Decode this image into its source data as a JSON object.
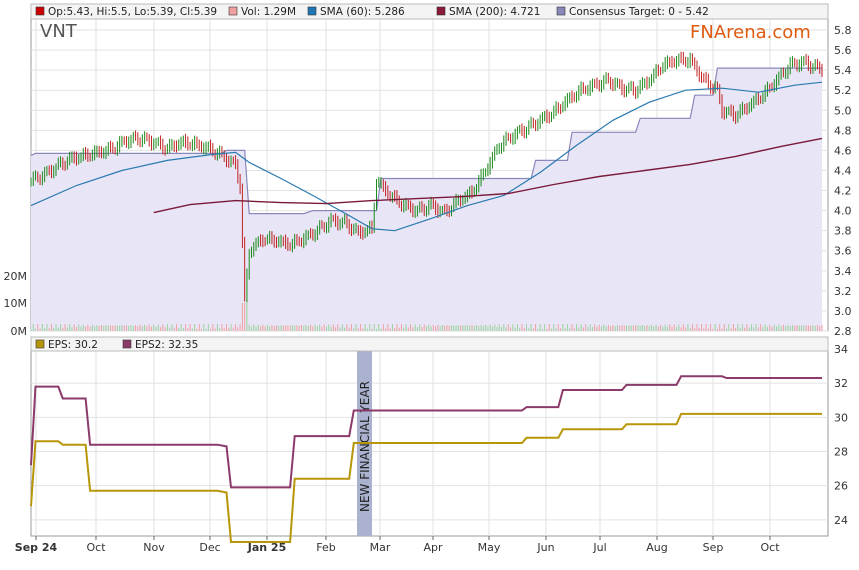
{
  "ticker": "VNT",
  "brand": "FNArena.com",
  "price_legend": [
    {
      "label": "Op:5.43, Hi:5.5, Lo:5.39, Cl:5.39",
      "color": "#cc0000"
    },
    {
      "label": "Vol: 1.29M",
      "color": "#f0a0a0"
    },
    {
      "label": "SMA (60): 5.286",
      "color": "#1f77b4"
    },
    {
      "label": "SMA (200): 4.721",
      "color": "#8b1a3a"
    },
    {
      "label": "Consensus Target: 0 - 5.42",
      "color": "#8888bb"
    }
  ],
  "eps_legend": [
    {
      "label": "EPS: 30.2",
      "color": "#b8960a"
    },
    {
      "label": "EPS2: 32.35",
      "color": "#8b3a6b"
    }
  ],
  "annotation": "NEW FINANCIAL YEAR",
  "x_ticks": [
    "Sep 24",
    "Oct",
    "Nov",
    "Dec",
    "Jan 25",
    "Feb",
    "Mar",
    "Apr",
    "May",
    "Jun",
    "Jul",
    "Aug",
    "Sep",
    "Oct"
  ],
  "chart_data": [
    {
      "type": "line",
      "title": "VNT",
      "ylim": [
        2.8,
        5.8
      ],
      "y_ticks": [
        "2.8",
        "3.0",
        "3.2",
        "3.4",
        "3.6",
        "3.8",
        "4.0",
        "4.2",
        "4.4",
        "4.6",
        "4.8",
        "5.0",
        "5.2",
        "5.4",
        "5.6",
        "5.8"
      ],
      "volume_ticks": [
        "0M",
        "10M",
        "20M"
      ],
      "series": [
        {
          "name": "Close",
          "points": [
            [
              0,
              4.3
            ],
            [
              3,
              4.36
            ],
            [
              6,
              4.45
            ],
            [
              9,
              4.52
            ],
            [
              12,
              4.55
            ],
            [
              15,
              4.58
            ],
            [
              18,
              4.62
            ],
            [
              21,
              4.7
            ],
            [
              24,
              4.72
            ],
            [
              27,
              4.68
            ],
            [
              30,
              4.62
            ],
            [
              33,
              4.68
            ],
            [
              36,
              4.66
            ],
            [
              39,
              4.62
            ],
            [
              42,
              4.55
            ],
            [
              45,
              4.45
            ],
            [
              46,
              4.25
            ],
            [
              47,
              3.1
            ],
            [
              48,
              3.6
            ],
            [
              51,
              3.72
            ],
            [
              54,
              3.7
            ],
            [
              57,
              3.66
            ],
            [
              60,
              3.72
            ],
            [
              63,
              3.8
            ],
            [
              66,
              3.9
            ],
            [
              69,
              3.88
            ],
            [
              72,
              3.78
            ],
            [
              75,
              3.82
            ],
            [
              76,
              4.3
            ],
            [
              79,
              4.15
            ],
            [
              82,
              4.05
            ],
            [
              85,
              4.0
            ],
            [
              88,
              4.05
            ],
            [
              91,
              3.98
            ],
            [
              94,
              4.1
            ],
            [
              97,
              4.18
            ],
            [
              100,
              4.4
            ],
            [
              103,
              4.65
            ],
            [
              106,
              4.75
            ],
            [
              109,
              4.82
            ],
            [
              112,
              4.9
            ],
            [
              115,
              4.98
            ],
            [
              118,
              5.1
            ],
            [
              121,
              5.2
            ],
            [
              124,
              5.25
            ],
            [
              127,
              5.3
            ],
            [
              130,
              5.22
            ],
            [
              133,
              5.2
            ],
            [
              136,
              5.3
            ],
            [
              139,
              5.45
            ],
            [
              142,
              5.5
            ],
            [
              145,
              5.5
            ],
            [
              148,
              5.3
            ],
            [
              151,
              5.2
            ],
            [
              152,
              5.0
            ],
            [
              155,
              4.95
            ],
            [
              158,
              5.05
            ],
            [
              161,
              5.15
            ],
            [
              164,
              5.3
            ],
            [
              167,
              5.45
            ],
            [
              170,
              5.48
            ],
            [
              173,
              5.42
            ]
          ]
        },
        {
          "name": "SMA (60)",
          "points": [
            [
              0,
              4.05
            ],
            [
              10,
              4.25
            ],
            [
              20,
              4.4
            ],
            [
              30,
              4.5
            ],
            [
              40,
              4.56
            ],
            [
              45,
              4.58
            ],
            [
              48,
              4.48
            ],
            [
              55,
              4.32
            ],
            [
              62,
              4.15
            ],
            [
              70,
              3.95
            ],
            [
              75,
              3.82
            ],
            [
              80,
              3.8
            ],
            [
              88,
              3.92
            ],
            [
              96,
              4.05
            ],
            [
              104,
              4.15
            ],
            [
              112,
              4.38
            ],
            [
              120,
              4.65
            ],
            [
              128,
              4.9
            ],
            [
              136,
              5.08
            ],
            [
              144,
              5.2
            ],
            [
              152,
              5.22
            ],
            [
              160,
              5.18
            ],
            [
              168,
              5.25
            ],
            [
              174,
              5.28
            ]
          ]
        },
        {
          "name": "SMA (200)",
          "points": [
            [
              27,
              3.98
            ],
            [
              35,
              4.06
            ],
            [
              45,
              4.1
            ],
            [
              55,
              4.08
            ],
            [
              65,
              4.07
            ],
            [
              75,
              4.1
            ],
            [
              85,
              4.12
            ],
            [
              95,
              4.14
            ],
            [
              105,
              4.17
            ],
            [
              115,
              4.26
            ],
            [
              125,
              4.34
            ],
            [
              135,
              4.4
            ],
            [
              145,
              4.46
            ],
            [
              155,
              4.54
            ],
            [
              165,
              4.64
            ],
            [
              174,
              4.72
            ]
          ]
        },
        {
          "name": "Consensus Target",
          "points": [
            [
              0,
              4.55
            ],
            [
              1,
              4.57
            ],
            [
              42,
              4.57
            ],
            [
              43,
              4.6
            ],
            [
              47,
              4.6
            ],
            [
              48,
              3.97
            ],
            [
              60,
              3.97
            ],
            [
              62,
              4.0
            ],
            [
              76,
              4.0
            ],
            [
              77,
              4.32
            ],
            [
              110,
              4.32
            ],
            [
              111,
              4.5
            ],
            [
              118,
              4.5
            ],
            [
              119,
              4.78
            ],
            [
              133,
              4.78
            ],
            [
              134,
              4.92
            ],
            [
              145,
              4.92
            ],
            [
              146,
              5.15
            ],
            [
              150,
              5.15
            ],
            [
              151,
              5.42
            ],
            [
              174,
              5.42
            ]
          ]
        }
      ]
    },
    {
      "type": "line",
      "ylim": [
        22,
        34
      ],
      "y_ticks": [
        "24",
        "26",
        "28",
        "30",
        "32",
        "34"
      ],
      "series": [
        {
          "name": "EPS",
          "points": [
            [
              0,
              24.8
            ],
            [
              1,
              28.6
            ],
            [
              6,
              28.6
            ],
            [
              7,
              28.4
            ],
            [
              12,
              28.4
            ],
            [
              13,
              25.7
            ],
            [
              41,
              25.7
            ],
            [
              43,
              25.6
            ],
            [
              44,
              22.7
            ],
            [
              57,
              22.7
            ],
            [
              58,
              26.4
            ],
            [
              70,
              26.4
            ],
            [
              71,
              28.5
            ],
            [
              108,
              28.5
            ],
            [
              109,
              28.8
            ],
            [
              116,
              28.8
            ],
            [
              117,
              29.3
            ],
            [
              130,
              29.3
            ],
            [
              131,
              29.6
            ],
            [
              142,
              29.6
            ],
            [
              143,
              30.2
            ],
            [
              174,
              30.2
            ]
          ]
        },
        {
          "name": "EPS2",
          "points": [
            [
              0,
              27.2
            ],
            [
              1,
              31.8
            ],
            [
              6,
              31.8
            ],
            [
              7,
              31.1
            ],
            [
              12,
              31.1
            ],
            [
              13,
              28.4
            ],
            [
              41,
              28.4
            ],
            [
              43,
              28.3
            ],
            [
              44,
              25.9
            ],
            [
              57,
              25.9
            ],
            [
              58,
              28.9
            ],
            [
              70,
              28.9
            ],
            [
              71,
              30.4
            ],
            [
              108,
              30.4
            ],
            [
              109,
              30.6
            ],
            [
              116,
              30.6
            ],
            [
              117,
              31.6
            ],
            [
              130,
              31.6
            ],
            [
              131,
              31.9
            ],
            [
              142,
              31.9
            ],
            [
              143,
              32.4
            ],
            [
              152,
              32.4
            ],
            [
              153,
              32.3
            ],
            [
              174,
              32.3
            ]
          ]
        }
      ]
    }
  ]
}
